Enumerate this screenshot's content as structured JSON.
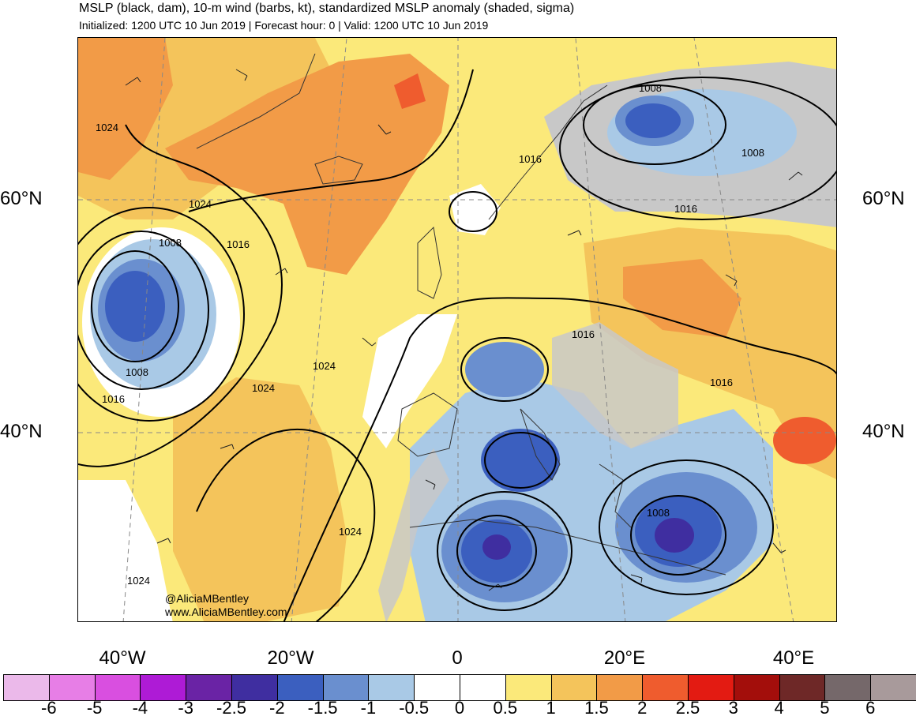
{
  "title": "MSLP (black, dam), 10-m wind (barbs, kt), standardized MSLP anomaly (shaded, sigma)",
  "subtitle": "Initialized: 1200 UTC 10 Jun 2019 | Forecast hour: 0 | Valid: 1200 UTC 10 Jun 2019",
  "map": {
    "lat_labels_left": [
      "60°N",
      "40°N"
    ],
    "lat_labels_right": [
      "60°N",
      "40°N"
    ],
    "lon_labels": [
      "40°W",
      "20°W",
      "0",
      "20°E",
      "40°E"
    ],
    "isobar_labels": [
      "1024",
      "1024",
      "1024",
      "1024",
      "1024",
      "1024",
      "1016",
      "1016",
      "1016",
      "1016",
      "1016",
      "1016",
      "1008",
      "1008",
      "1008",
      "1008",
      "1008"
    ],
    "credits": [
      "@AliciaMBentley",
      "www.AliciaMBentley.com"
    ]
  },
  "colorbar": {
    "colors": [
      "#ebb9ea",
      "#e77ee6",
      "#d94fe0",
      "#ae1bd6",
      "#6a23a5",
      "#3f2ea0",
      "#3b5fbf",
      "#6a8fcf",
      "#a9c9e6",
      "#ffffff",
      "#ffffff",
      "#fbe97a",
      "#f4c45b",
      "#f29b47",
      "#ef5c2e",
      "#e31b12",
      "#a30e0b",
      "#6e2827",
      "#75686a",
      "#a89a9b"
    ],
    "ticks": [
      "-6",
      "-5",
      "-4",
      "-3",
      "-2.5",
      "-2",
      "-1.5",
      "-1",
      "-0.5",
      "0",
      "0.5",
      "1",
      "1.5",
      "2",
      "2.5",
      "3",
      "4",
      "5",
      "6"
    ]
  }
}
